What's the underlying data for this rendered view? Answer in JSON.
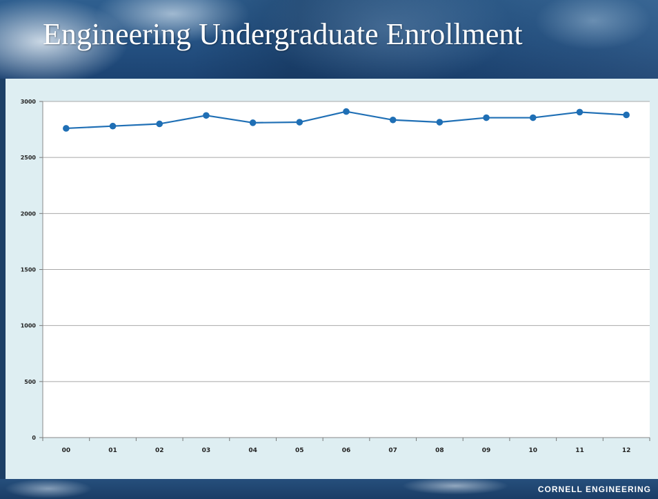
{
  "slide": {
    "title": "Engineering Undergraduate Enrollment",
    "footer": "CORNELL ENGINEERING"
  },
  "colors": {
    "series": "#1f6fb5",
    "grid": "#a8a8a8",
    "plot_background": "#ffffff",
    "slide_background": "#deeef2"
  },
  "chart_data": {
    "type": "line",
    "title": "",
    "xlabel": "",
    "ylabel": "",
    "categories": [
      "00",
      "01",
      "02",
      "03",
      "04",
      "05",
      "06",
      "07",
      "08",
      "09",
      "10",
      "11",
      "12"
    ],
    "series": [
      {
        "values": [
          2760,
          2780,
          2800,
          2875,
          2810,
          2815,
          2910,
          2835,
          2815,
          2855,
          2855,
          2905,
          2880
        ]
      }
    ],
    "ylim": [
      0,
      3000
    ],
    "yticks": [
      0,
      500,
      1000,
      1500,
      2000,
      2500,
      3000
    ],
    "grid": true,
    "legend": "none"
  }
}
